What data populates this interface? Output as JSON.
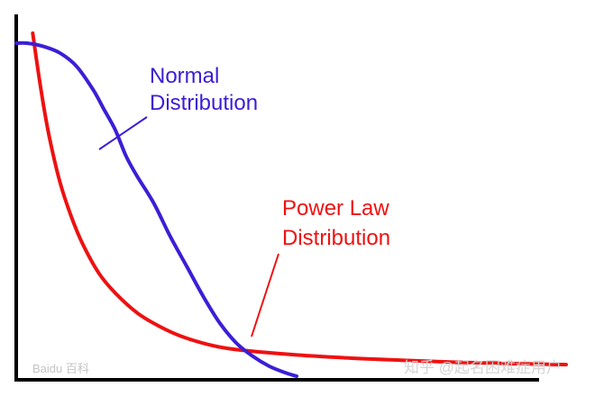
{
  "chart_data": {
    "type": "line",
    "title": "",
    "xlabel": "",
    "ylabel": "",
    "axes": {
      "ticks": false,
      "grid": false
    },
    "series": [
      {
        "name": "Normal Distribution",
        "label_lines": [
          "Normal",
          "Distribution"
        ],
        "color": "#3a1fd6",
        "points": [
          [
            0.0,
            1.0
          ],
          [
            0.02,
            1.0
          ],
          [
            0.05,
            0.99
          ],
          [
            0.08,
            0.97
          ],
          [
            0.11,
            0.93
          ],
          [
            0.14,
            0.86
          ],
          [
            0.16,
            0.8
          ],
          [
            0.18,
            0.74
          ],
          [
            0.2,
            0.66
          ],
          [
            0.22,
            0.6
          ],
          [
            0.25,
            0.52
          ],
          [
            0.28,
            0.42
          ],
          [
            0.31,
            0.33
          ],
          [
            0.34,
            0.24
          ],
          [
            0.37,
            0.16
          ],
          [
            0.4,
            0.1
          ],
          [
            0.43,
            0.06
          ],
          [
            0.46,
            0.03
          ],
          [
            0.49,
            0.01
          ],
          [
            0.51,
            0.0
          ]
        ]
      },
      {
        "name": "Power Law Distribution",
        "label_lines": [
          "Power Law",
          "Distribution"
        ],
        "color": "#ee1111",
        "points": [
          [
            0.03,
            1.03
          ],
          [
            0.045,
            0.86
          ],
          [
            0.06,
            0.72
          ],
          [
            0.08,
            0.58
          ],
          [
            0.1,
            0.48
          ],
          [
            0.12,
            0.4
          ],
          [
            0.15,
            0.31
          ],
          [
            0.18,
            0.25
          ],
          [
            0.22,
            0.19
          ],
          [
            0.26,
            0.15
          ],
          [
            0.3,
            0.12
          ],
          [
            0.35,
            0.095
          ],
          [
            0.4,
            0.08
          ],
          [
            0.5,
            0.065
          ],
          [
            0.6,
            0.055
          ],
          [
            0.7,
            0.048
          ],
          [
            0.8,
            0.042
          ],
          [
            0.9,
            0.038
          ],
          [
            1.0,
            0.035
          ]
        ]
      }
    ]
  },
  "watermarks": {
    "left": "Baidu 百科",
    "right": "知乎 @起名困难症用户"
  }
}
